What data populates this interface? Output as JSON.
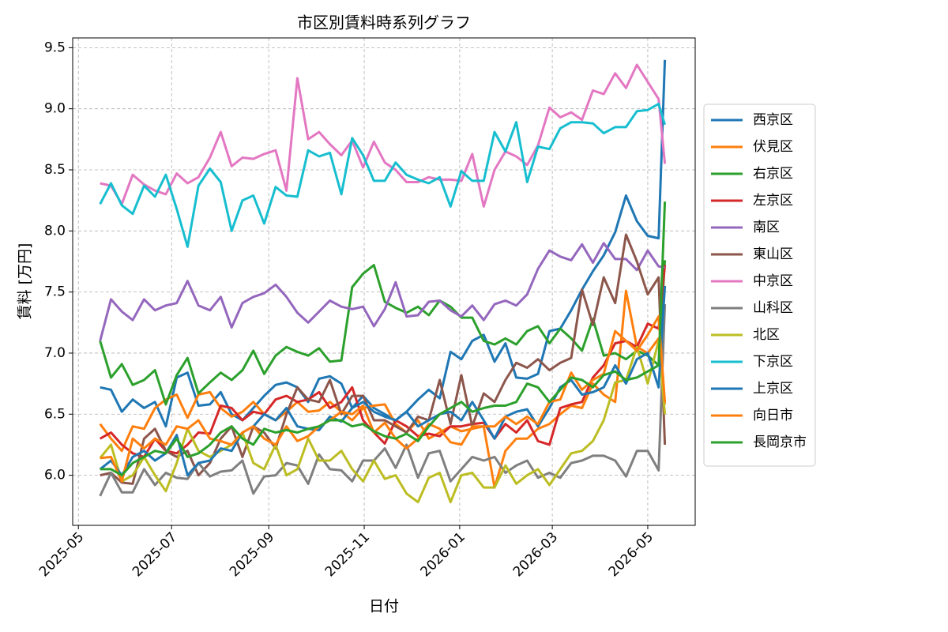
{
  "chart_data": {
    "type": "line",
    "title": "市区別賃料時系列グラフ",
    "x_label": "日付",
    "y_label": "賃料 [万円]",
    "x": [
      2025.371,
      2025.39,
      2025.409,
      2025.428,
      2025.448,
      2025.467,
      2025.486,
      2025.505,
      2025.524,
      2025.543,
      2025.563,
      2025.582,
      2025.601,
      2025.62,
      2025.639,
      2025.658,
      2025.678,
      2025.697,
      2025.716,
      2025.735,
      2025.754,
      2025.773,
      2025.793,
      2025.812,
      2025.831,
      2025.85,
      2025.869,
      2025.888,
      2025.907,
      2025.927,
      2025.946,
      2025.965,
      2025.984,
      2026.003,
      2026.022,
      2026.042,
      2026.061,
      2026.08,
      2026.099,
      2026.118,
      2026.137,
      2026.157,
      2026.176,
      2026.195,
      2026.214,
      2026.233,
      2026.252,
      2026.272,
      2026.291,
      2026.31,
      2026.329,
      2026.348,
      2026.359
    ],
    "xlim": [
      2025.323,
      2026.412
    ],
    "xticks": [
      {
        "value": 2025.333,
        "label": "2025-05"
      },
      {
        "value": 2025.496,
        "label": "2025-07"
      },
      {
        "value": 2025.666,
        "label": "2025-09"
      },
      {
        "value": 2025.833,
        "label": "2025-11"
      },
      {
        "value": 2026.0,
        "label": "2026-01"
      },
      {
        "value": 2026.162,
        "label": "2026-03"
      },
      {
        "value": 2026.329,
        "label": "2026-05"
      }
    ],
    "ylim": [
      5.59,
      9.58
    ],
    "yticks": [
      {
        "value": 6,
        "label": "6.0"
      },
      6.5,
      {
        "value": 7,
        "label": "7.0"
      },
      7.5,
      {
        "value": 8,
        "label": "8.0"
      },
      8.5,
      {
        "value": 9,
        "label": "9.0"
      },
      9.5
    ],
    "grid": true,
    "legend": "outside-right",
    "series": [
      {
        "name": "西京区",
        "color": "#1f77b4",
        "values": [
          6.72,
          6.7,
          6.52,
          6.62,
          6.55,
          6.6,
          6.4,
          6.8,
          6.84,
          6.57,
          6.58,
          6.68,
          6.5,
          6.45,
          6.55,
          6.65,
          6.74,
          6.76,
          6.72,
          6.6,
          6.79,
          6.81,
          6.75,
          6.55,
          6.65,
          6.55,
          6.5,
          6.45,
          6.52,
          6.62,
          6.7,
          6.63,
          7.01,
          6.95,
          7.1,
          7.15,
          6.93,
          7.08,
          6.8,
          6.79,
          6.83,
          7.18,
          7.2,
          7.35,
          7.52,
          7.67,
          7.8,
          7.99,
          8.29,
          8.08,
          7.96,
          7.94,
          9.4
        ]
      },
      {
        "name": "伏見区",
        "color": "#ff7f0e",
        "values": [
          6.42,
          6.3,
          6.2,
          6.4,
          6.38,
          6.55,
          6.62,
          6.66,
          6.47,
          6.66,
          6.68,
          6.55,
          6.48,
          6.52,
          6.6,
          6.5,
          6.45,
          6.52,
          6.6,
          6.52,
          6.53,
          6.6,
          6.52,
          6.45,
          6.55,
          6.57,
          6.58,
          6.42,
          6.35,
          6.45,
          6.3,
          6.35,
          6.4,
          6.36,
          6.38,
          6.4,
          5.9,
          6.2,
          6.3,
          6.3,
          6.38,
          6.42,
          6.5,
          6.57,
          6.55,
          6.75,
          6.66,
          6.6,
          7.51,
          7.05,
          7.0,
          7.12,
          6.58
        ]
      },
      {
        "name": "右京区",
        "color": "#2ca02c",
        "values": [
          7.1,
          6.8,
          6.91,
          6.74,
          6.78,
          6.86,
          6.58,
          6.82,
          6.96,
          6.67,
          6.76,
          6.84,
          6.78,
          6.86,
          7.02,
          6.83,
          6.98,
          7.05,
          7.01,
          6.98,
          7.04,
          6.93,
          6.94,
          7.54,
          7.65,
          7.72,
          7.42,
          7.37,
          7.33,
          7.38,
          7.31,
          7.43,
          7.38,
          7.29,
          7.29,
          7.1,
          7.07,
          7.12,
          7.07,
          7.18,
          7.22,
          7.08,
          7.2,
          7.12,
          7.02,
          7.28,
          6.98,
          7.0,
          6.95,
          7.02,
          6.98,
          6.9,
          7.76
        ]
      },
      {
        "name": "左京区",
        "color": "#d62728",
        "values": [
          6.3,
          6.35,
          6.25,
          6.18,
          6.15,
          6.3,
          6.2,
          6.18,
          6.25,
          6.35,
          6.34,
          6.57,
          6.55,
          6.45,
          6.52,
          6.5,
          6.62,
          6.65,
          6.6,
          6.62,
          6.68,
          6.55,
          6.6,
          6.72,
          6.45,
          6.35,
          6.26,
          6.45,
          6.4,
          6.32,
          6.34,
          6.32,
          6.4,
          6.4,
          6.42,
          6.43,
          6.3,
          6.42,
          6.35,
          6.45,
          6.28,
          6.25,
          6.55,
          6.58,
          6.6,
          6.8,
          6.9,
          7.08,
          7.1,
          7.05,
          7.24,
          7.2,
          7.72
        ]
      },
      {
        "name": "南区",
        "color": "#9467bd",
        "values": [
          7.1,
          7.44,
          7.34,
          7.27,
          7.44,
          7.35,
          7.39,
          7.41,
          7.59,
          7.39,
          7.35,
          7.46,
          7.21,
          7.41,
          7.46,
          7.49,
          7.56,
          7.46,
          7.33,
          7.25,
          7.34,
          7.43,
          7.38,
          7.36,
          7.38,
          7.22,
          7.36,
          7.58,
          7.3,
          7.31,
          7.42,
          7.43,
          7.35,
          7.3,
          7.39,
          7.27,
          7.4,
          7.43,
          7.39,
          7.48,
          7.69,
          7.84,
          7.79,
          7.76,
          7.89,
          7.74,
          7.9,
          7.77,
          7.77,
          7.68,
          7.84,
          7.71,
          7.7
        ]
      },
      {
        "name": "東山区",
        "color": "#8c564b",
        "values": [
          6.0,
          6.02,
          5.94,
          5.93,
          6.3,
          6.38,
          6.2,
          6.15,
          6.2,
          6.0,
          6.1,
          6.3,
          6.4,
          6.15,
          6.4,
          6.35,
          6.22,
          6.5,
          6.72,
          6.62,
          6.6,
          6.78,
          6.5,
          6.65,
          6.65,
          6.45,
          6.45,
          6.4,
          6.35,
          6.48,
          6.45,
          6.78,
          6.42,
          6.82,
          6.4,
          6.67,
          6.6,
          6.78,
          6.92,
          6.88,
          6.95,
          6.86,
          6.92,
          6.96,
          7.52,
          7.23,
          7.62,
          7.41,
          7.97,
          7.75,
          7.48,
          7.62,
          6.25
        ]
      },
      {
        "name": "中京区",
        "color": "#e377c2",
        "values": [
          8.39,
          8.37,
          8.22,
          8.46,
          8.38,
          8.33,
          8.3,
          8.47,
          8.39,
          8.44,
          8.6,
          8.81,
          8.53,
          8.6,
          8.59,
          8.63,
          8.66,
          8.33,
          9.25,
          8.75,
          8.81,
          8.71,
          8.62,
          8.74,
          8.52,
          8.73,
          8.56,
          8.5,
          8.4,
          8.4,
          8.44,
          8.42,
          8.42,
          8.41,
          8.63,
          8.2,
          8.5,
          8.65,
          8.61,
          8.54,
          8.7,
          9.01,
          8.93,
          8.97,
          8.91,
          9.15,
          9.12,
          9.29,
          9.17,
          9.36,
          9.22,
          9.08,
          8.55
        ]
      },
      {
        "name": "山科区",
        "color": "#7f7f7f",
        "values": [
          5.83,
          6.02,
          5.86,
          5.86,
          6.05,
          5.92,
          6.02,
          5.98,
          5.97,
          6.1,
          5.99,
          6.03,
          6.04,
          6.12,
          5.85,
          5.99,
          6.0,
          6.1,
          6.08,
          5.93,
          6.17,
          6.05,
          6.04,
          5.95,
          6.12,
          6.12,
          6.22,
          6.06,
          6.25,
          5.98,
          6.18,
          6.2,
          5.95,
          6.05,
          6.15,
          6.12,
          6.15,
          6.02,
          6.08,
          6.12,
          5.98,
          6.02,
          5.98,
          6.1,
          6.12,
          6.16,
          6.16,
          6.12,
          5.99,
          6.2,
          6.2,
          6.04,
          7.4
        ]
      },
      {
        "name": "北区",
        "color": "#bcbd22",
        "values": [
          6.14,
          6.25,
          5.95,
          6.0,
          6.15,
          6.0,
          5.87,
          6.1,
          6.38,
          6.2,
          6.15,
          6.2,
          6.25,
          6.35,
          6.1,
          6.05,
          6.25,
          6.0,
          6.05,
          6.3,
          6.12,
          6.12,
          6.2,
          6.05,
          5.95,
          6.12,
          5.97,
          6.0,
          5.85,
          5.78,
          5.98,
          6.02,
          5.78,
          6.0,
          6.02,
          5.9,
          5.9,
          6.08,
          5.93,
          6.0,
          6.05,
          5.92,
          6.05,
          6.18,
          6.2,
          6.28,
          6.45,
          6.76,
          6.78,
          7.05,
          6.75,
          7.1,
          6.5
        ]
      },
      {
        "name": "下京区",
        "color": "#17becf",
        "values": [
          8.22,
          8.39,
          8.21,
          8.14,
          8.37,
          8.28,
          8.46,
          8.18,
          7.87,
          8.37,
          8.51,
          8.4,
          8.0,
          8.25,
          8.29,
          8.06,
          8.36,
          8.29,
          8.28,
          8.66,
          8.61,
          8.64,
          8.3,
          8.76,
          8.62,
          8.41,
          8.41,
          8.56,
          8.46,
          8.42,
          8.39,
          8.44,
          8.2,
          8.49,
          8.41,
          8.41,
          8.81,
          8.65,
          8.89,
          8.4,
          8.69,
          8.67,
          8.84,
          8.89,
          8.89,
          8.88,
          8.8,
          8.85,
          8.85,
          8.98,
          8.99,
          9.04,
          8.87
        ]
      },
      {
        "name": "上京区",
        "color": "#1f77b4",
        "values": [
          6.05,
          6.12,
          6.0,
          6.15,
          6.2,
          6.12,
          6.18,
          6.33,
          6.0,
          6.1,
          6.12,
          6.22,
          6.2,
          6.35,
          6.4,
          6.5,
          6.45,
          6.55,
          6.4,
          6.38,
          6.37,
          6.48,
          6.44,
          6.55,
          6.6,
          6.52,
          6.48,
          6.45,
          6.52,
          6.4,
          6.45,
          6.5,
          6.52,
          6.45,
          6.6,
          6.45,
          6.3,
          6.48,
          6.52,
          6.54,
          6.4,
          6.55,
          6.72,
          6.78,
          6.66,
          6.68,
          6.72,
          6.9,
          6.75,
          6.95,
          7.0,
          6.72,
          7.55
        ]
      },
      {
        "name": "向日市",
        "color": "#ff7f0e",
        "values": [
          6.14,
          6.15,
          5.95,
          6.3,
          6.22,
          6.3,
          6.25,
          6.4,
          6.38,
          6.45,
          6.3,
          6.28,
          6.25,
          6.35,
          6.4,
          6.3,
          6.25,
          6.4,
          6.28,
          6.32,
          6.4,
          6.45,
          6.52,
          6.5,
          6.57,
          6.35,
          6.43,
          6.3,
          6.22,
          6.3,
          6.42,
          6.38,
          6.27,
          6.25,
          6.4,
          6.4,
          6.4,
          6.48,
          6.42,
          6.48,
          6.42,
          6.6,
          6.62,
          6.84,
          6.7,
          6.78,
          6.83,
          7.18,
          7.1,
          7.02,
          7.15,
          7.3,
          6.6
        ]
      },
      {
        "name": "長岡京市",
        "color": "#2ca02c",
        "values": [
          6.05,
          6.05,
          6.0,
          6.1,
          6.15,
          6.2,
          6.18,
          6.3,
          6.15,
          6.18,
          6.25,
          6.35,
          6.4,
          6.3,
          6.25,
          6.38,
          6.35,
          6.37,
          6.35,
          6.38,
          6.4,
          6.45,
          6.45,
          6.4,
          6.42,
          6.36,
          6.32,
          6.3,
          6.34,
          6.28,
          6.4,
          6.5,
          6.55,
          6.6,
          6.52,
          6.55,
          6.57,
          6.57,
          6.6,
          6.75,
          6.72,
          6.6,
          6.7,
          6.8,
          6.78,
          6.72,
          6.82,
          6.85,
          6.78,
          6.8,
          6.85,
          6.9,
          8.24
        ]
      }
    ]
  }
}
